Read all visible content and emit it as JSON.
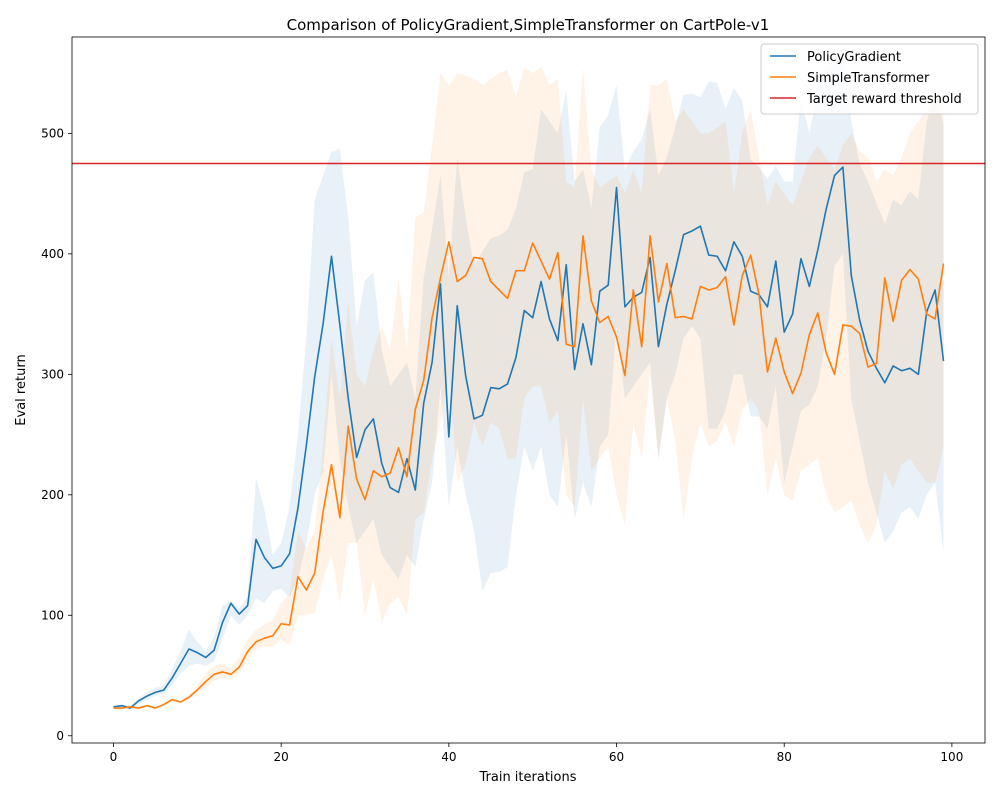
{
  "chart_data": {
    "type": "line",
    "title": "Comparison of PolicyGradient,SimpleTransformer on CartPole-v1",
    "xlabel": "Train iterations",
    "ylabel": "Eval return",
    "xlim": [
      -4.95,
      103.95
    ],
    "ylim": [
      -6,
      580
    ],
    "xticks": [
      0,
      20,
      40,
      60,
      80,
      100
    ],
    "yticks": [
      0,
      100,
      200,
      300,
      400,
      500
    ],
    "grid": false,
    "legend_position": "upper right",
    "threshold": {
      "name": "Target reward threshold",
      "value": 475,
      "color": "#d62728"
    },
    "x": [
      0,
      1,
      2,
      3,
      4,
      5,
      6,
      7,
      8,
      9,
      10,
      11,
      12,
      13,
      14,
      15,
      16,
      17,
      18,
      19,
      20,
      21,
      22,
      23,
      24,
      25,
      26,
      27,
      28,
      29,
      30,
      31,
      32,
      33,
      34,
      35,
      36,
      37,
      38,
      39,
      40,
      41,
      42,
      43,
      44,
      45,
      46,
      47,
      48,
      49,
      50,
      51,
      52,
      53,
      54,
      55,
      56,
      57,
      58,
      59,
      60,
      61,
      62,
      63,
      64,
      65,
      66,
      67,
      68,
      69,
      70,
      71,
      72,
      73,
      74,
      75,
      76,
      77,
      78,
      79,
      80,
      81,
      82,
      83,
      84,
      85,
      86,
      87,
      88,
      89,
      90,
      91,
      92,
      93,
      94,
      95,
      96,
      97,
      98,
      99
    ],
    "series": [
      {
        "name": "PolicyGradient",
        "color": "#1f77b4",
        "values": [
          24,
          25,
          23,
          29,
          33,
          36,
          38,
          48,
          60,
          72,
          69,
          65,
          71,
          94,
          110,
          101,
          108,
          163,
          148,
          139,
          141,
          151,
          189,
          241,
          298,
          342,
          398,
          341,
          280,
          231,
          254,
          263,
          226,
          206,
          202,
          230,
          204,
          276,
          310,
          375,
          248,
          357,
          299,
          263,
          266,
          289,
          288,
          292,
          314,
          353,
          347,
          377,
          346,
          328,
          391,
          304,
          342,
          308,
          369,
          374,
          455,
          356,
          364,
          368,
          397,
          323,
          358,
          386,
          416,
          419,
          423,
          399,
          398,
          386,
          410,
          398,
          369,
          366,
          356,
          394,
          335,
          350,
          396,
          373,
          403,
          437,
          465,
          472,
          382,
          345,
          319,
          305,
          293,
          307,
          303,
          305,
          300,
          352,
          370,
          311
        ],
        "band_upper": [
          25,
          26,
          25,
          31,
          36,
          40,
          42,
          55,
          70,
          88,
          78,
          70,
          82,
          108,
          112,
          106,
          116,
          214,
          188,
          150,
          160,
          190,
          250,
          330,
          445,
          465,
          485,
          487,
          430,
          340,
          378,
          385,
          320,
          290,
          300,
          310,
          280,
          380,
          420,
          465,
          380,
          480,
          430,
          390,
          402,
          413,
          415,
          420,
          437,
          468,
          470,
          520,
          510,
          500,
          535,
          460,
          470,
          438,
          505,
          515,
          540,
          470,
          485,
          495,
          520,
          465,
          480,
          505,
          532,
          533,
          530,
          543,
          542,
          520,
          538,
          527,
          478,
          472,
          462,
          473,
          460,
          460,
          529,
          500,
          535,
          555,
          560,
          563,
          510,
          475,
          460,
          442,
          425,
          445,
          440,
          452,
          445,
          510,
          532,
          508
        ],
        "band_lower": [
          22,
          24,
          22,
          26,
          30,
          33,
          35,
          42,
          52,
          58,
          60,
          58,
          62,
          80,
          100,
          92,
          100,
          114,
          110,
          120,
          122,
          115,
          130,
          160,
          200,
          220,
          300,
          230,
          190,
          160,
          170,
          180,
          150,
          140,
          130,
          150,
          140,
          180,
          210,
          290,
          190,
          240,
          200,
          170,
          120,
          135,
          136,
          140,
          200,
          240,
          220,
          240,
          200,
          190,
          250,
          180,
          210,
          190,
          240,
          250,
          340,
          280,
          290,
          300,
          310,
          230,
          280,
          300,
          330,
          340,
          330,
          255,
          255,
          270,
          300,
          300,
          265,
          265,
          255,
          290,
          210,
          240,
          270,
          275,
          290,
          330,
          390,
          400,
          280,
          245,
          210,
          185,
          160,
          170,
          185,
          190,
          180,
          200,
          210,
          152
        ]
      },
      {
        "name": "SimpleTransformer",
        "color": "#ff7f0e",
        "values": [
          23,
          23,
          24,
          23,
          25,
          23,
          26,
          30,
          28,
          32,
          38,
          45,
          51,
          53,
          51,
          57,
          70,
          78,
          81,
          83,
          93,
          92,
          132,
          121,
          135,
          186,
          225,
          181,
          257,
          213,
          196,
          220,
          215,
          218,
          239,
          215,
          271,
          295,
          347,
          380,
          410,
          377,
          382,
          397,
          396,
          377,
          370,
          363,
          386,
          386,
          409,
          394,
          379,
          401,
          325,
          323,
          415,
          361,
          343,
          348,
          331,
          299,
          370,
          323,
          415,
          360,
          392,
          347,
          348,
          346,
          373,
          370,
          372,
          381,
          341,
          382,
          399,
          366,
          302,
          330,
          302,
          284,
          301,
          333,
          351,
          318,
          300,
          341,
          340,
          334,
          306,
          309,
          380,
          344,
          378,
          387,
          379,
          350,
          346,
          392
        ],
        "band_upper": [
          24,
          24,
          25,
          24,
          26,
          24,
          27,
          31,
          29,
          34,
          42,
          52,
          58,
          60,
          56,
          65,
          80,
          88,
          92,
          96,
          110,
          118,
          170,
          155,
          170,
          240,
          330,
          280,
          360,
          300,
          290,
          320,
          340,
          320,
          380,
          320,
          430,
          435,
          490,
          550,
          540,
          550,
          548,
          545,
          540,
          545,
          550,
          553,
          530,
          555,
          550,
          555,
          540,
          545,
          460,
          455,
          555,
          470,
          455,
          460,
          465,
          450,
          470,
          450,
          540,
          540,
          545,
          510,
          520,
          510,
          500,
          500,
          505,
          510,
          450,
          500,
          520,
          480,
          440,
          460,
          450,
          440,
          460,
          480,
          490,
          480,
          470,
          490,
          500,
          485,
          480,
          460,
          470,
          465,
          480,
          500,
          510,
          520,
          530,
          530
        ],
        "band_lower": [
          22,
          22,
          23,
          22,
          24,
          22,
          25,
          29,
          27,
          30,
          34,
          40,
          46,
          48,
          47,
          52,
          63,
          72,
          74,
          74,
          80,
          75,
          100,
          100,
          102,
          130,
          150,
          110,
          160,
          160,
          100,
          130,
          95,
          110,
          115,
          100,
          180,
          185,
          230,
          260,
          300,
          210,
          225,
          260,
          240,
          260,
          255,
          230,
          230,
          280,
          290,
          290,
          260,
          270,
          200,
          190,
          280,
          220,
          230,
          240,
          200,
          175,
          260,
          230,
          300,
          230,
          280,
          245,
          180,
          230,
          260,
          240,
          245,
          260,
          240,
          270,
          280,
          270,
          200,
          230,
          200,
          195,
          220,
          225,
          230,
          200,
          185,
          190,
          195,
          175,
          160,
          175,
          220,
          205,
          225,
          230,
          220,
          210,
          210,
          240
        ]
      }
    ]
  }
}
